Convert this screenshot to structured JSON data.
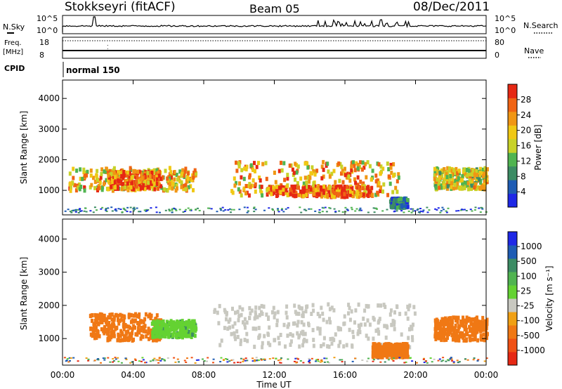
{
  "header": {
    "station": "Stokkseyri (fitACF)",
    "beam": "Beam 05",
    "date": "08/Dec/2011"
  },
  "noise_panel": {
    "left_label": "N.Sky",
    "right_label": "N.Search",
    "left_ticks": [
      "10^5",
      "10^0"
    ],
    "right_ticks": [
      "10^5",
      "10^0"
    ]
  },
  "freq_panel": {
    "left_label_line1": "Freq.",
    "left_label_line2": "[MHz]",
    "right_label": "Nave",
    "left_ticks": [
      "18",
      "8"
    ],
    "right_ticks": [
      "80",
      "0"
    ]
  },
  "cpid": {
    "label": "CPID",
    "value": "normal 150"
  },
  "x_axis": {
    "label": "Time UT",
    "ticks": [
      "00:00",
      "04:00",
      "08:00",
      "12:00",
      "16:00",
      "20:00",
      "00:00"
    ]
  },
  "colors": {
    "power_scale": [
      "#1e28e6",
      "#1e5cb4",
      "#3c8c64",
      "#50b450",
      "#c8d228",
      "#f0c814",
      "#f09614",
      "#f06414",
      "#e62814"
    ],
    "velocity_scale": [
      "#1e28e6",
      "#1e5cb4",
      "#3c8c64",
      "#50b450",
      "#64d232",
      "#c8c8c0",
      "#f0a014",
      "#f07814",
      "#f05014",
      "#e62814"
    ]
  },
  "chart_data": [
    {
      "type": "heatmap",
      "name": "power",
      "ylabel": "Slant Range [km]",
      "xlabel": "",
      "yticks": [
        "1000",
        "2000",
        "3000",
        "4000"
      ],
      "ylim": [
        200,
        4600
      ],
      "xlim_hours": [
        0,
        24
      ],
      "colorbar_label": "Power [dB]",
      "colorbar_ticks": [
        "4",
        "8",
        "12",
        "16",
        "20",
        "24",
        "28"
      ],
      "colorbar_range": [
        0,
        32
      ],
      "regions": [
        {
          "t_start": 0.3,
          "t_end": 7.5,
          "range_low": 1050,
          "range_high": 1800,
          "value": 20
        },
        {
          "t_start": 2.5,
          "t_end": 5.5,
          "range_low": 1100,
          "range_high": 1700,
          "value": 26
        },
        {
          "t_start": 9.5,
          "t_end": 19.0,
          "range_low": 900,
          "range_high": 2000,
          "value": 22
        },
        {
          "t_start": 11.5,
          "t_end": 17.5,
          "range_low": 850,
          "range_high": 1200,
          "value": 28
        },
        {
          "t_start": 18.5,
          "t_end": 19.5,
          "range_low": 500,
          "range_high": 800,
          "value": 8
        },
        {
          "t_start": 21.0,
          "t_end": 24.0,
          "range_low": 1100,
          "range_high": 1800,
          "value": 18
        }
      ]
    },
    {
      "type": "heatmap",
      "name": "velocity",
      "ylabel": "Slant Range [km]",
      "xlabel": "Time UT",
      "yticks": [
        "1000",
        "2000",
        "3000",
        "4000"
      ],
      "ylim": [
        200,
        4600
      ],
      "xlim_hours": [
        0,
        24
      ],
      "colorbar_label": "Velocity [m s⁻¹]",
      "colorbar_ticks": [
        "1000",
        "500",
        "100",
        "25",
        "-25",
        "-100",
        "-500",
        "-1000"
      ],
      "regions": [
        {
          "t_start": 1.5,
          "t_end": 5.5,
          "range_low": 1000,
          "range_high": 1800,
          "value": -150
        },
        {
          "t_start": 5.0,
          "t_end": 7.5,
          "range_low": 1100,
          "range_high": 1600,
          "value": 80
        },
        {
          "t_start": 8.5,
          "t_end": 20.0,
          "range_low": 800,
          "range_high": 2100,
          "value": 0
        },
        {
          "t_start": 17.5,
          "t_end": 19.5,
          "range_low": 500,
          "range_high": 900,
          "value": -200
        },
        {
          "t_start": 21.0,
          "t_end": 24.0,
          "range_low": 1000,
          "range_high": 1700,
          "value": -300
        }
      ]
    }
  ]
}
